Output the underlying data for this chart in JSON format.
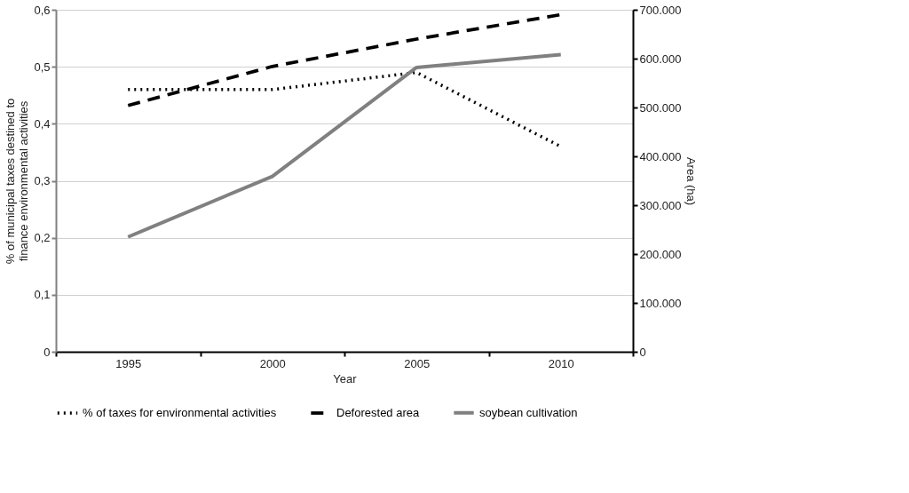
{
  "chart_data": {
    "type": "line",
    "xlabel": "Year",
    "ylabel": "% of municipal taxes destined to finance environmental activities",
    "y2label": "Area (ha)",
    "categories": [
      "1995",
      "2000",
      "2005",
      "2010"
    ],
    "series": [
      {
        "name": "% of taxes for environmental activities",
        "color": "#000000",
        "line_style": "dotted",
        "values": [
          0.46,
          0.46,
          0.49,
          0.36
        ]
      },
      {
        "name": "Deforested area",
        "color": "#000000",
        "line_style": "dashed",
        "axis": "y2",
        "values": [
          504000,
          584000,
          640000,
          690000
        ]
      },
      {
        "name": "soybean cultivation",
        "color": "#808080",
        "line_style": "solid",
        "axis": "y2",
        "values": [
          235000,
          359000,
          582000,
          608000
        ]
      }
    ],
    "ylim": [
      0,
      0.6
    ],
    "yticks": [
      {
        "value": 0,
        "label": "0"
      },
      {
        "value": 0.1,
        "label": "0,1"
      },
      {
        "value": 0.2,
        "label": "0,2"
      },
      {
        "value": 0.3,
        "label": "0,3"
      },
      {
        "value": 0.4,
        "label": "0,4"
      },
      {
        "value": 0.5,
        "label": "0,5"
      },
      {
        "value": 0.6,
        "label": "0,6"
      }
    ],
    "y2lim": [
      0,
      700000
    ],
    "y2ticks": [
      {
        "value": 0,
        "label": "0"
      },
      {
        "value": 100000,
        "label": "100.000"
      },
      {
        "value": 200000,
        "label": "200.000"
      },
      {
        "value": 300000,
        "label": "300.000"
      },
      {
        "value": 400000,
        "label": "400.000"
      },
      {
        "value": 500000,
        "label": "500.000"
      },
      {
        "value": 600000,
        "label": "600.000"
      },
      {
        "value": 700000,
        "label": "700.000"
      }
    ],
    "grid": "y",
    "legend": "bottom",
    "marker": "none"
  }
}
